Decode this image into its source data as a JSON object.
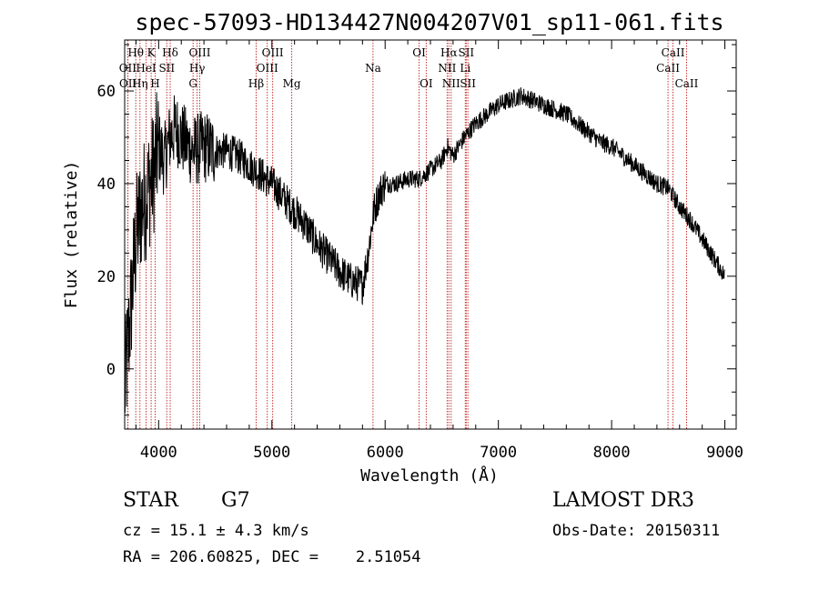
{
  "chart_data": {
    "type": "line",
    "title": "spec-57093-HD134427N004207V01_sp11-061.fits",
    "xlabel": "Wavelength (Å)",
    "ylabel": "Flux (relative)",
    "xlim": [
      3700,
      9100
    ],
    "ylim": [
      -13,
      71
    ],
    "xticks": [
      4000,
      5000,
      6000,
      7000,
      8000,
      9000
    ],
    "xtick_labels": [
      "4000",
      "5000",
      "6000",
      "7000",
      "8000",
      "9000"
    ],
    "yticks": [
      0,
      20,
      40,
      60
    ],
    "ytick_labels": [
      "0",
      "20",
      "40",
      "60"
    ],
    "grid": false,
    "series": [
      {
        "name": "spectrum",
        "x": [
          3700,
          3760,
          3800,
          3850,
          3900,
          3950,
          4000,
          4050,
          4100,
          4150,
          4200,
          4300,
          4400,
          4500,
          4600,
          4700,
          4800,
          4900,
          5000,
          5100,
          5200,
          5300,
          5400,
          5500,
          5600,
          5700,
          5800,
          5850,
          5900,
          5950,
          6000,
          6100,
          6200,
          6300,
          6400,
          6500,
          6550,
          6600,
          6700,
          6800,
          6900,
          7000,
          7100,
          7200,
          7300,
          7400,
          7500,
          7600,
          7700,
          7800,
          7900,
          8000,
          8100,
          8200,
          8300,
          8400,
          8500,
          8550,
          8600,
          8700,
          8800,
          8900,
          8950,
          9000
        ],
        "y": [
          -5,
          15,
          28,
          35,
          38,
          42,
          48,
          45,
          50,
          52,
          50,
          47,
          48,
          47,
          47,
          46,
          44,
          42,
          40,
          37,
          34,
          31,
          27,
          24,
          21,
          19,
          18,
          25,
          34,
          38,
          40,
          40,
          41,
          41,
          43,
          45,
          48,
          46,
          50,
          53,
          55,
          57,
          58,
          59,
          58,
          57,
          56,
          55,
          53,
          51,
          49,
          48,
          46,
          44,
          42,
          40,
          39,
          37,
          35,
          32,
          28,
          24,
          22,
          20
        ]
      }
    ],
    "spectral_lines": [
      {
        "label": "Hθ",
        "wavelength": 3798,
        "row": 0
      },
      {
        "label": "OII",
        "wavelength": 3727,
        "row": 1
      },
      {
        "label": "OII",
        "wavelength": 3729,
        "row": 2
      },
      {
        "label": "K",
        "wavelength": 3934,
        "row": 0
      },
      {
        "label": "HeI",
        "wavelength": 3889,
        "row": 1
      },
      {
        "label": "Hη",
        "wavelength": 3835,
        "row": 2
      },
      {
        "label": "Hδ",
        "wavelength": 4102,
        "row": 0
      },
      {
        "label": "SII",
        "wavelength": 4072,
        "row": 1
      },
      {
        "label": "H",
        "wavelength": 3969,
        "row": 2
      },
      {
        "label": "OIII",
        "wavelength": 4363,
        "row": 0
      },
      {
        "label": "Hγ",
        "wavelength": 4340,
        "row": 1
      },
      {
        "label": "G",
        "wavelength": 4304,
        "row": 2
      },
      {
        "label": "OIII",
        "wavelength": 5007,
        "row": 0
      },
      {
        "label": "OIII",
        "wavelength": 4959,
        "row": 1
      },
      {
        "label": "Hβ",
        "wavelength": 4861,
        "row": 2
      },
      {
        "label": "Mg",
        "wavelength": 5175,
        "row": 2
      },
      {
        "label": "Na",
        "wavelength": 5893,
        "row": 1
      },
      {
        "label": "OI",
        "wavelength": 6300,
        "row": 0
      },
      {
        "label": "OI",
        "wavelength": 6363,
        "row": 2
      },
      {
        "label": "Hα",
        "wavelength": 6563,
        "row": 0
      },
      {
        "label": "NII",
        "wavelength": 6548,
        "row": 1
      },
      {
        "label": "NII",
        "wavelength": 6583,
        "row": 2
      },
      {
        "label": "SII",
        "wavelength": 6716,
        "row": 0
      },
      {
        "label": "Li",
        "wavelength": 6708,
        "row": 1
      },
      {
        "label": "SII",
        "wavelength": 6731,
        "row": 2
      },
      {
        "label": "CaII",
        "wavelength": 8542,
        "row": 0
      },
      {
        "label": "CaII",
        "wavelength": 8498,
        "row": 1
      },
      {
        "label": "CaII",
        "wavelength": 8662,
        "row": 2
      }
    ]
  },
  "info": {
    "object_type": "STAR",
    "subclass": "G7",
    "survey": "LAMOST DR3",
    "cz": "cz = 15.1 ± 4.3 km/s",
    "obs_date": "Obs-Date: 20150311",
    "coords": "RA = 206.60825, DEC =    2.51054"
  },
  "colors": {
    "line_marker": "#c83232",
    "spectrum": "#000000"
  }
}
